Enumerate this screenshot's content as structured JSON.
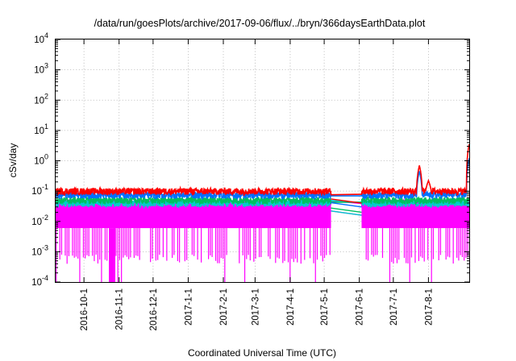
{
  "chart_data": {
    "type": "line",
    "title": "/data/run/goesPlots/archive/2017-09-06/flux/../bryn/366daysEarthData.plot",
    "xlabel": "Coordinated Universal Time (UTC)",
    "ylabel": "cSv/day",
    "yscale": "log",
    "ylim": [
      0.0001,
      10000
    ],
    "xlim": [
      "2016-09-06",
      "2017-09-06"
    ],
    "grid": true,
    "x_ticks": [
      "2016-10-1",
      "2016-11-1",
      "2016-12-1",
      "2017-1-1",
      "2017-2-1",
      "2017-3-1",
      "2017-4-1",
      "2017-5-1",
      "2017-6-1",
      "2017-7-1",
      "2017-8-1"
    ],
    "y_ticks": [
      {
        "value": 0.0001,
        "mantissa": "10",
        "exponent": "-4"
      },
      {
        "value": 0.001,
        "mantissa": "10",
        "exponent": "-3"
      },
      {
        "value": 0.01,
        "mantissa": "10",
        "exponent": "-2"
      },
      {
        "value": 0.1,
        "mantissa": "10",
        "exponent": "-1"
      },
      {
        "value": 1,
        "mantissa": "10",
        "exponent": "0"
      },
      {
        "value": 10,
        "mantissa": "10",
        "exponent": "1"
      },
      {
        "value": 100,
        "mantissa": "10",
        "exponent": "2"
      },
      {
        "value": 1000,
        "mantissa": "10",
        "exponent": "3"
      },
      {
        "value": 10000,
        "mantissa": "10",
        "exponent": "4"
      }
    ],
    "data_gap": [
      "2017-05-07",
      "2017-06-03"
    ],
    "series": [
      {
        "color": "#ff0000",
        "baseline": 0.1,
        "spikes": [
          {
            "x": "2017-07-24",
            "y": 0.7
          },
          {
            "x": "2017-08-01",
            "y": 0.22
          },
          {
            "x": "2017-09-06",
            "y": 3.5
          }
        ]
      },
      {
        "color": "#0070ff",
        "baseline": 0.075,
        "spikes": [
          {
            "x": "2017-07-24",
            "y": 0.45
          },
          {
            "x": "2017-09-06",
            "y": 1.2
          }
        ]
      },
      {
        "color": "#00c060",
        "baseline": 0.05
      },
      {
        "color": "#00cccc",
        "baseline": 0.04
      },
      {
        "color": "#ff00ff",
        "baseline": 0.04,
        "floor": 0.0001
      }
    ]
  }
}
